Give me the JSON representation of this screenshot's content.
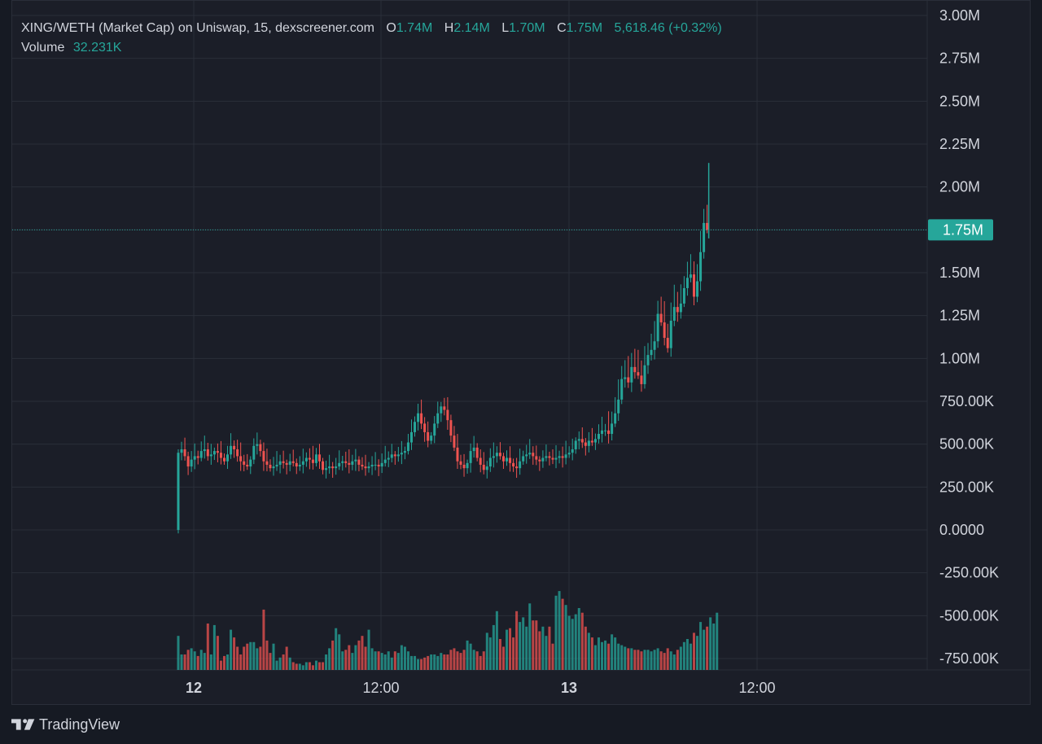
{
  "legend": {
    "symbol": "XING/WETH (Market Cap) on Uniswap, 15, dexscreener.com",
    "open_label": "O",
    "open": "1.74M",
    "high_label": "H",
    "high": "2.14M",
    "low_label": "L",
    "low": "1.70M",
    "close_label": "C",
    "close": "1.75M",
    "change": "5,618.46 (+0.32%)",
    "volume_label": "Volume",
    "volume": "32.231K"
  },
  "brand": {
    "name": "TradingView"
  },
  "colors": {
    "up": "#26a69a",
    "down": "#ef5350",
    "bg": "#1b1e28",
    "grid": "#2a2e39"
  },
  "chart_data": {
    "type": "candlestick",
    "y_ticks": [
      "3.00M",
      "2.75M",
      "2.50M",
      "2.25M",
      "2.00M",
      "1.75M",
      "1.50M",
      "1.25M",
      "1.00M",
      "750.00K",
      "500.00K",
      "250.00K",
      "0.0000",
      "-250.00K",
      "-500.00K",
      "-750.00K"
    ],
    "y_range": [
      -800000,
      3000000
    ],
    "x_ticks": [
      {
        "label": "12",
        "bold": true
      },
      {
        "label": "12:00",
        "bold": false
      },
      {
        "label": "13",
        "bold": true
      },
      {
        "label": "12:00",
        "bold": false
      }
    ],
    "last_price_label": "1.75M",
    "last_price": 1750000,
    "close": [
      0.45,
      0.47,
      0.43,
      0.37,
      0.41,
      0.43,
      0.42,
      0.46,
      0.47,
      0.43,
      0.44,
      0.46,
      0.45,
      0.42,
      0.4,
      0.44,
      0.49,
      0.47,
      0.43,
      0.4,
      0.38,
      0.37,
      0.41,
      0.49,
      0.5,
      0.46,
      0.4,
      0.38,
      0.36,
      0.37,
      0.38,
      0.4,
      0.39,
      0.38,
      0.4,
      0.39,
      0.37,
      0.38,
      0.4,
      0.42,
      0.41,
      0.39,
      0.44,
      0.4,
      0.35,
      0.36,
      0.37,
      0.36,
      0.37,
      0.39,
      0.4,
      0.39,
      0.38,
      0.4,
      0.41,
      0.38,
      0.37,
      0.36,
      0.37,
      0.38,
      0.38,
      0.37,
      0.39,
      0.41,
      0.42,
      0.44,
      0.43,
      0.44,
      0.45,
      0.46,
      0.51,
      0.57,
      0.63,
      0.68,
      0.62,
      0.57,
      0.52,
      0.55,
      0.62,
      0.68,
      0.72,
      0.7,
      0.64,
      0.55,
      0.48,
      0.4,
      0.38,
      0.36,
      0.39,
      0.46,
      0.48,
      0.42,
      0.38,
      0.35,
      0.37,
      0.42,
      0.43,
      0.45,
      0.43,
      0.4,
      0.42,
      0.39,
      0.37,
      0.36,
      0.4,
      0.43,
      0.44,
      0.45,
      0.43,
      0.41,
      0.4,
      0.42,
      0.43,
      0.42,
      0.41,
      0.42,
      0.43,
      0.42,
      0.44,
      0.45,
      0.47,
      0.52,
      0.53,
      0.51,
      0.49,
      0.52,
      0.51,
      0.53,
      0.56,
      0.58,
      0.58,
      0.56,
      0.62,
      0.68,
      0.76,
      0.88,
      0.89,
      0.86,
      0.95,
      0.92,
      0.9,
      0.85,
      0.96,
      1.02,
      1.05,
      1.1,
      1.26,
      1.21,
      1.12,
      1.06,
      1.22,
      1.3,
      1.27,
      1.32,
      1.41,
      1.47,
      1.49,
      1.36,
      1.45,
      1.62,
      1.79,
      1.75
    ],
    "volume_pct": [
      0.22,
      0.1,
      0.1,
      0.13,
      0.14,
      0.12,
      0.09,
      0.13,
      0.11,
      0.3,
      0.1,
      0.29,
      0.22,
      0.06,
      0.09,
      0.1,
      0.26,
      0.21,
      0.15,
      0.1,
      0.15,
      0.17,
      0.18,
      0.18,
      0.14,
      0.15,
      0.39,
      0.19,
      0.11,
      0.17,
      0.06,
      0.08,
      0.1,
      0.15,
      0.08,
      0.05,
      0.04,
      0.04,
      0.03,
      0.05,
      0.05,
      0.03,
      0.06,
      0.05,
      0.05,
      0.1,
      0.14,
      0.19,
      0.27,
      0.23,
      0.12,
      0.13,
      0.16,
      0.11,
      0.16,
      0.19,
      0.22,
      0.15,
      0.26,
      0.14,
      0.12,
      0.12,
      0.11,
      0.1,
      0.12,
      0.08,
      0.12,
      0.11,
      0.16,
      0.15,
      0.12,
      0.09,
      0.09,
      0.07,
      0.07,
      0.08,
      0.09,
      0.1,
      0.1,
      0.09,
      0.11,
      0.1,
      0.1,
      0.13,
      0.14,
      0.12,
      0.11,
      0.13,
      0.19,
      0.17,
      0.13,
      0.12,
      0.09,
      0.12,
      0.24,
      0.21,
      0.29,
      0.38,
      0.2,
      0.15,
      0.26,
      0.27,
      0.21,
      0.38,
      0.31,
      0.34,
      0.28,
      0.43,
      0.32,
      0.32,
      0.25,
      0.28,
      0.22,
      0.28,
      0.17,
      0.48,
      0.51,
      0.46,
      0.42,
      0.35,
      0.33,
      0.36,
      0.4,
      0.37,
      0.28,
      0.24,
      0.21,
      0.16,
      0.21,
      0.18,
      0.19,
      0.17,
      0.23,
      0.21,
      0.17,
      0.16,
      0.15,
      0.14,
      0.14,
      0.13,
      0.13,
      0.12,
      0.13,
      0.13,
      0.12,
      0.13,
      0.14,
      0.12,
      0.11,
      0.14,
      0.12,
      0.1,
      0.13,
      0.15,
      0.18,
      0.2,
      0.17,
      0.24,
      0.22,
      0.31,
      0.26,
      0.28,
      0.34,
      0.3,
      0.37
    ]
  }
}
